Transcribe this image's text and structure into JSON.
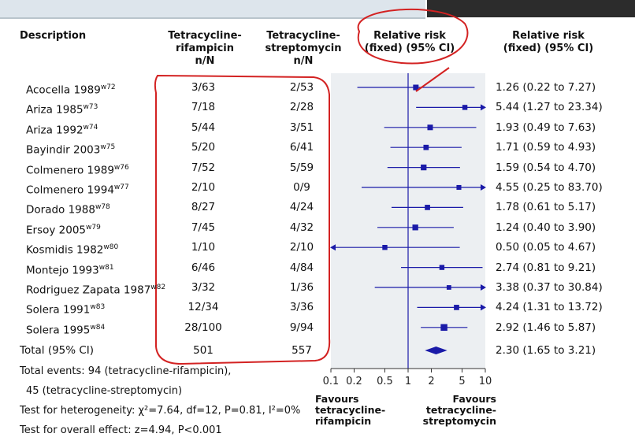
{
  "headers": {
    "description": "Description",
    "col1": [
      "Tetracycline-",
      "rifampicin",
      "n/N"
    ],
    "col2": [
      "Tetracycline-",
      "streptomycin",
      "n/N"
    ],
    "plot": [
      "Relative risk",
      "(fixed) (95% CI)"
    ],
    "ci": [
      "Relative risk",
      "(fixed) (95% CI)"
    ]
  },
  "studies": [
    {
      "name": "Acocella 1989",
      "sup": "w72",
      "c1": "3/63",
      "c2": "2/53",
      "ci": "1.26 (0.22 to 7.27)"
    },
    {
      "name": "Ariza 1985",
      "sup": "w73",
      "c1": "7/18",
      "c2": "2/28",
      "ci": "5.44 (1.27 to 23.34)"
    },
    {
      "name": "Ariza 1992",
      "sup": "w74",
      "c1": "5/44",
      "c2": "3/51",
      "ci": "1.93 (0.49 to 7.63)"
    },
    {
      "name": "Bayindir 2003",
      "sup": "w75",
      "c1": "5/20",
      "c2": "6/41",
      "ci": "1.71 (0.59 to 4.93)"
    },
    {
      "name": "Colmenero 1989",
      "sup": "w76",
      "c1": "7/52",
      "c2": "5/59",
      "ci": "1.59 (0.54 to 4.70)"
    },
    {
      "name": "Colmenero 1994",
      "sup": "w77",
      "c1": "2/10",
      "c2": "0/9",
      "ci": "4.55 (0.25 to 83.70)"
    },
    {
      "name": "Dorado 1988",
      "sup": "w78",
      "c1": "8/27",
      "c2": "4/24",
      "ci": "1.78 (0.61 to 5.17)"
    },
    {
      "name": "Ersoy 2005",
      "sup": "w79",
      "c1": "7/45",
      "c2": "4/32",
      "ci": "1.24 (0.40 to 3.90)"
    },
    {
      "name": "Kosmidis 1982",
      "sup": "w80",
      "c1": "1/10",
      "c2": "2/10",
      "ci": "0.50 (0.05 to 4.67)"
    },
    {
      "name": "Montejo 1993",
      "sup": "w81",
      "c1": "6/46",
      "c2": "4/84",
      "ci": "2.74 (0.81 to 9.21)"
    },
    {
      "name": "Rodriguez Zapata 1987",
      "sup": "w82",
      "c1": "3/32",
      "c2": "1/36",
      "ci": "3.38 (0.37 to 30.84)"
    },
    {
      "name": "Solera 1991",
      "sup": "w83",
      "c1": "12/34",
      "c2": "3/36",
      "ci": "4.24 (1.31 to 13.72)"
    },
    {
      "name": "Solera 1995",
      "sup": "w84",
      "c1": "28/100",
      "c2": "9/94",
      "ci": "2.92 (1.46 to 5.87)"
    }
  ],
  "total": {
    "label": "Total (95% CI)",
    "c1": "501",
    "c2": "557",
    "ci": "2.30 (1.65 to 3.21)"
  },
  "footer": {
    "events1": "Total events: 94 (tetracycline-rifampicin),",
    "events2": "45 (tetracycline-streptomycin)",
    "heterogeneity": "Test for heterogeneity: χ²=7.64, df=12, P=0.81, I²=0%",
    "overall": "Test for overall effect: z=4.94, P<0.001"
  },
  "favours_left": [
    "Favours",
    "tetracycline-",
    "rifampicin"
  ],
  "favours_right": [
    "Favours",
    "tetracycline-",
    "streptomycin"
  ],
  "colors": {
    "marker": "#1a1aa8",
    "panel": "#eceff2",
    "annotation": "#d32222"
  },
  "chart_data": {
    "type": "forest",
    "x_scale": "log",
    "xlim": [
      0.1,
      10
    ],
    "ticks": [
      0.1,
      0.2,
      0.5,
      1,
      2,
      5,
      10
    ],
    "tick_labels": [
      "0.1",
      "0.2",
      "0.5",
      "1",
      "2",
      "5",
      "10"
    ],
    "reference_line": 1,
    "studies": [
      {
        "rr": 1.26,
        "lo": 0.22,
        "hi": 7.27,
        "weight": 0.5
      },
      {
        "rr": 5.44,
        "lo": 1.27,
        "hi": 23.34,
        "weight": 0.4
      },
      {
        "rr": 1.93,
        "lo": 0.49,
        "hi": 7.63,
        "weight": 0.5
      },
      {
        "rr": 1.71,
        "lo": 0.59,
        "hi": 4.93,
        "weight": 0.45
      },
      {
        "rr": 1.59,
        "lo": 0.54,
        "hi": 4.7,
        "weight": 0.55
      },
      {
        "rr": 4.55,
        "lo": 0.25,
        "hi": 83.7,
        "weight": 0.35
      },
      {
        "rr": 1.78,
        "lo": 0.61,
        "hi": 5.17,
        "weight": 0.45
      },
      {
        "rr": 1.24,
        "lo": 0.4,
        "hi": 3.9,
        "weight": 0.55
      },
      {
        "rr": 0.5,
        "lo": 0.05,
        "hi": 4.67,
        "weight": 0.4
      },
      {
        "rr": 2.74,
        "lo": 0.81,
        "hi": 9.21,
        "weight": 0.4
      },
      {
        "rr": 3.38,
        "lo": 0.37,
        "hi": 30.84,
        "weight": 0.3
      },
      {
        "rr": 4.24,
        "lo": 1.31,
        "hi": 13.72,
        "weight": 0.45
      },
      {
        "rr": 2.92,
        "lo": 1.46,
        "hi": 5.87,
        "weight": 0.75
      }
    ],
    "overall": {
      "rr": 2.3,
      "lo": 1.65,
      "hi": 3.21
    }
  }
}
